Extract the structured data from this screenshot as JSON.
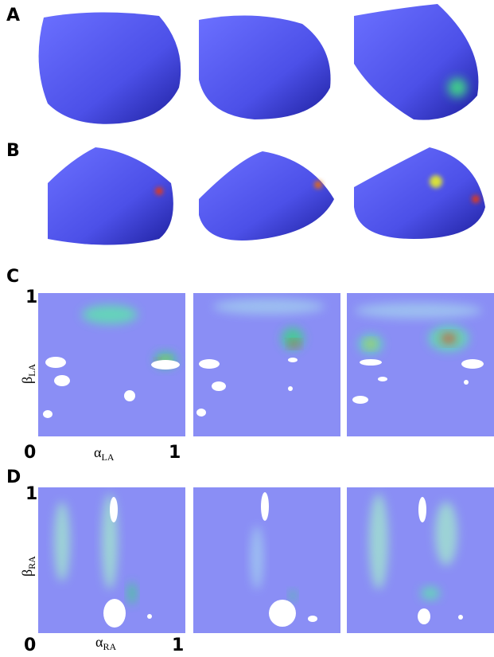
{
  "panels": [
    {
      "label": "A"
    },
    {
      "label": "B"
    },
    {
      "label": "C",
      "axes": {
        "y_top": "1",
        "y_label": {
          "symbol": "β",
          "subscript": "LA"
        },
        "x_left": "0",
        "x_label": {
          "symbol": "α",
          "subscript": "LA"
        },
        "x_right": "1"
      }
    },
    {
      "label": "D",
      "axes": {
        "y_top": "1",
        "y_label": {
          "symbol": "β",
          "subscript": "RA"
        },
        "x_left": "0",
        "x_label": {
          "symbol": "α",
          "subscript": "RA"
        },
        "x_right": "1"
      }
    }
  ]
}
